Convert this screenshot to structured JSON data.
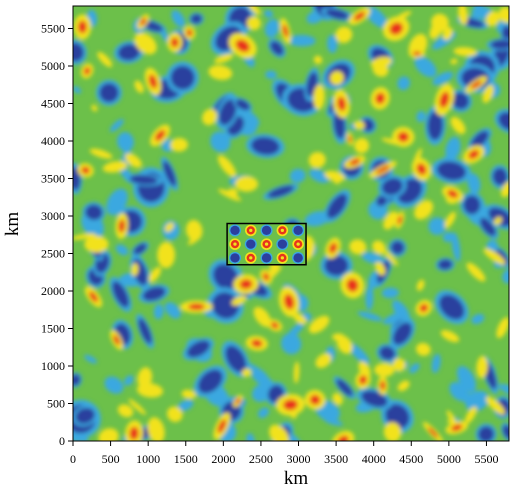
{
  "chart_data": {
    "type": "heatmap",
    "title": "",
    "xlabel": "km",
    "ylabel": "km",
    "xlim": [
      0,
      5800
    ],
    "ylim": [
      0,
      5800
    ],
    "x_ticks": [
      0,
      500,
      1000,
      1500,
      2000,
      2500,
      3000,
      3500,
      4000,
      4500,
      5000,
      5500
    ],
    "y_ticks": [
      0,
      500,
      1000,
      1500,
      2000,
      2500,
      3000,
      3500,
      4000,
      4500,
      5000,
      5500
    ],
    "x_tick_labels": [
      "0",
      "500",
      "1000",
      "1500",
      "2000",
      "2500",
      "3000",
      "3500",
      "4000",
      "4500",
      "5000",
      "5500"
    ],
    "y_tick_labels": [
      "0",
      "500",
      "1000",
      "1500",
      "2000",
      "2500",
      "3000",
      "3500",
      "4000",
      "4500",
      "5000",
      "5500"
    ],
    "colorscale": [
      "#2b3f9e",
      "#3aa8e0",
      "#6cc04a",
      "#f2e21d",
      "#e8331c"
    ],
    "background_level_color": "#6cc04a",
    "grid": false,
    "legend": "none",
    "highlight_box": {
      "x_range": [
        2050,
        3100
      ],
      "y_range": [
        2350,
        2900
      ],
      "pattern": "checkerboard",
      "rows": 3,
      "cols": 5
    }
  }
}
